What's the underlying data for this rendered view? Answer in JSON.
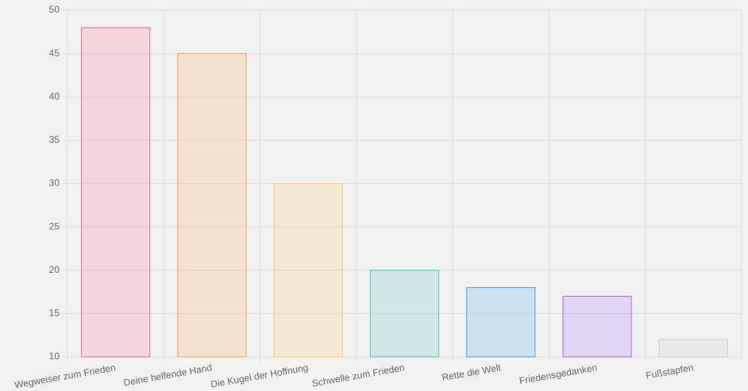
{
  "chart_data": {
    "type": "bar",
    "categories": [
      "Wegweiser zum Frieden",
      "Deine helfende Hand",
      "Die Kugel der Hoffnung",
      "Schwelle zum Frieden",
      "Rette die Welt",
      "Friedensgedanken",
      "Fußstapfen"
    ],
    "values": [
      48,
      45,
      30,
      20,
      18,
      17,
      12
    ],
    "colors": [
      "#ff6384",
      "#ff9f40",
      "#ffcd56",
      "#4bc0c0",
      "#36a2eb",
      "#9966ff",
      "#c9cbcf"
    ],
    "ylim": [
      10,
      50
    ],
    "yticks": [
      10,
      15,
      20,
      25,
      30,
      35,
      40,
      45,
      50
    ],
    "grid": true
  }
}
